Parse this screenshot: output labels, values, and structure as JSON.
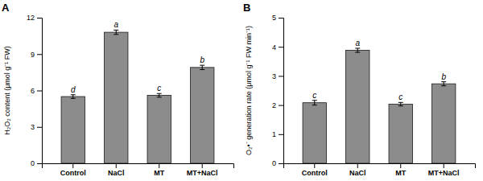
{
  "chart_data": [
    {
      "type": "bar",
      "title": "A",
      "categories": [
        "Control",
        "NaCl",
        "MT",
        "MT+NaCl"
      ],
      "values": [
        5.5,
        10.8,
        5.6,
        7.9
      ],
      "errors": [
        0.15,
        0.18,
        0.15,
        0.18
      ],
      "letters": [
        "d",
        "a",
        "c",
        "b"
      ],
      "y_label": "H₂O₂ content (μmol g⁻¹ FW)",
      "ylim": [
        0,
        12
      ],
      "yticks": [
        0,
        3,
        6,
        9,
        12
      ],
      "color": "#8c8c8c",
      "grid": false
    },
    {
      "type": "bar",
      "title": "B",
      "categories": [
        "Control",
        "NaCl",
        "MT",
        "MT+NaCl"
      ],
      "values": [
        2.08,
        3.88,
        2.03,
        2.73
      ],
      "errors": [
        0.08,
        0.07,
        0.06,
        0.07
      ],
      "letters": [
        "c",
        "a",
        "c",
        "b"
      ],
      "y_label": "O₂•⁻ generation rate (μmol g⁻¹ FW min⁻¹)",
      "ylim": [
        0,
        5
      ],
      "yticks": [
        0,
        1,
        2,
        3,
        4,
        5
      ],
      "color": "#8c8c8c",
      "grid": false
    }
  ]
}
